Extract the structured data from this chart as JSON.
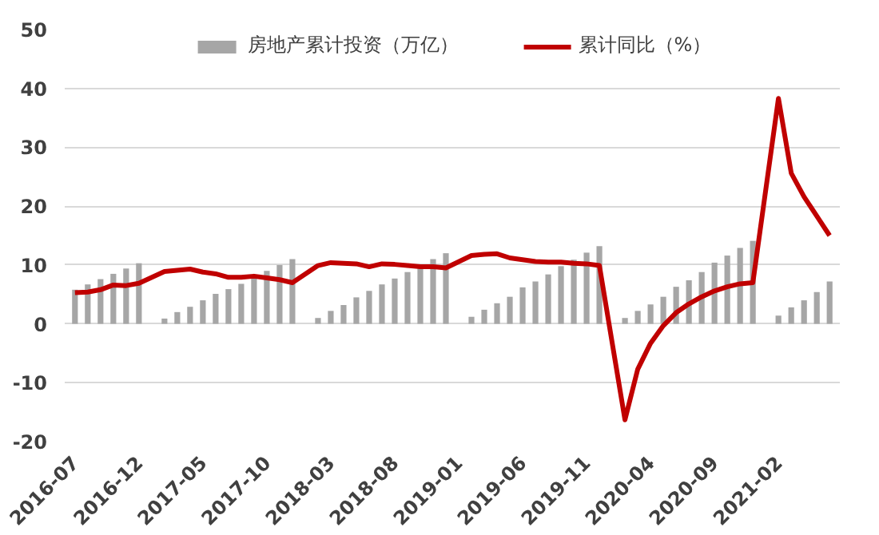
{
  "chart_data": {
    "type": "bar",
    "categories": [
      "2016-07",
      null,
      null,
      null,
      null,
      "2016-12",
      null,
      null,
      null,
      null,
      "2017-05",
      null,
      null,
      null,
      null,
      "2017-10",
      null,
      null,
      null,
      null,
      "2018-03",
      null,
      null,
      null,
      null,
      "2018-08",
      null,
      null,
      null,
      null,
      "2019-01",
      null,
      null,
      null,
      null,
      "2019-06",
      null,
      null,
      null,
      null,
      "2019-11",
      null,
      null,
      null,
      null,
      "2020-04",
      null,
      null,
      null,
      null,
      "2020-09",
      null,
      null,
      null,
      null,
      "2021-02",
      null,
      null,
      null,
      null
    ],
    "series": [
      {
        "name": "房地产累计投资（万亿）",
        "color": "#a6a6a6",
        "values": [
          5.8,
          6.7,
          7.6,
          8.5,
          9.4,
          10.3,
          null,
          0.9,
          2.0,
          2.9,
          4.0,
          5.1,
          5.9,
          6.8,
          8.0,
          9.0,
          10.0,
          11.0,
          null,
          1.0,
          2.2,
          3.2,
          4.5,
          5.6,
          6.7,
          7.7,
          8.8,
          9.9,
          11.0,
          12.0,
          null,
          1.2,
          2.4,
          3.5,
          4.6,
          6.2,
          7.2,
          8.4,
          9.8,
          10.9,
          12.1,
          13.2,
          null,
          1.0,
          2.2,
          3.3,
          4.6,
          6.3,
          7.4,
          8.8,
          10.4,
          11.6,
          12.9,
          14.1,
          null,
          1.4,
          2.8,
          4.0,
          5.4,
          7.2
        ]
      },
      {
        "name": "累计同比（%）",
        "type": "line",
        "color": "#c00000",
        "values": [
          5.3,
          5.4,
          5.8,
          6.6,
          6.5,
          6.9,
          null,
          8.9,
          9.1,
          9.3,
          8.8,
          8.5,
          7.9,
          7.9,
          8.1,
          7.8,
          7.5,
          7.0,
          null,
          9.9,
          10.4,
          10.3,
          10.2,
          9.7,
          10.2,
          10.1,
          9.9,
          9.7,
          9.7,
          9.5,
          null,
          11.6,
          11.8,
          11.9,
          11.2,
          10.9,
          10.6,
          10.5,
          10.5,
          10.3,
          10.2,
          9.9,
          null,
          -16.3,
          -7.7,
          -3.3,
          -0.3,
          1.9,
          3.4,
          4.6,
          5.6,
          6.3,
          6.8,
          7.0,
          null,
          38.3,
          25.6,
          21.6,
          18.3,
          15.0
        ]
      }
    ],
    "ylim": [
      -20,
      50
    ],
    "yticks": [
      -20,
      -10,
      0,
      10,
      20,
      30,
      40,
      50
    ],
    "grid": "y",
    "legend": "top",
    "line_style": "solid",
    "marker": "none"
  }
}
